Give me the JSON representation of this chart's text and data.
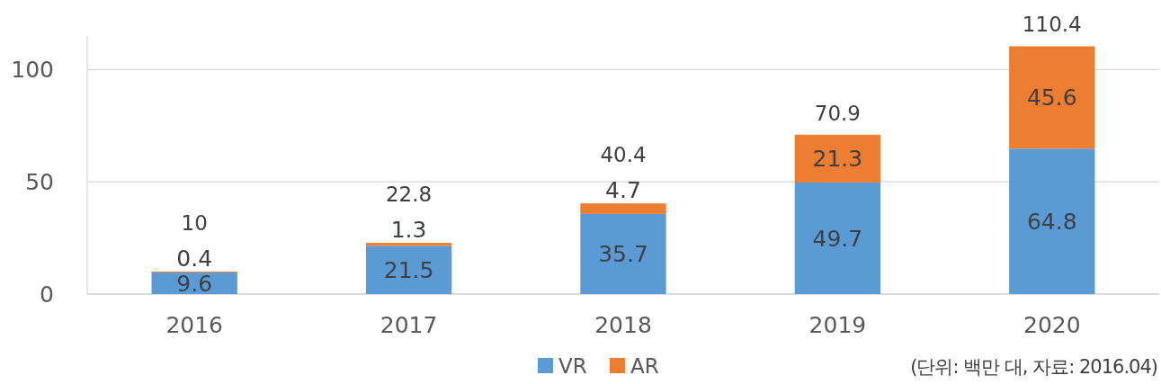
{
  "chart_data": {
    "type": "bar",
    "stacked": true,
    "categories": [
      "2016",
      "2017",
      "2018",
      "2019",
      "2020"
    ],
    "series": [
      {
        "name": "VR",
        "color": "#5b9bd5",
        "values": [
          9.6,
          21.5,
          35.7,
          49.7,
          64.8
        ]
      },
      {
        "name": "AR",
        "color": "#ed7d31",
        "values": [
          0.4,
          1.3,
          4.7,
          21.3,
          45.6
        ]
      }
    ],
    "totals": [
      "10",
      "22.8",
      "40.4",
      "70.9",
      "110.4"
    ],
    "data_labels": true,
    "ylim": [
      0,
      115
    ],
    "yticks": [
      0,
      50,
      100
    ],
    "grid": "y",
    "legend": "bottom",
    "annotations": [
      "(단위: 백만 대, 자료: 2016.04)"
    ]
  }
}
